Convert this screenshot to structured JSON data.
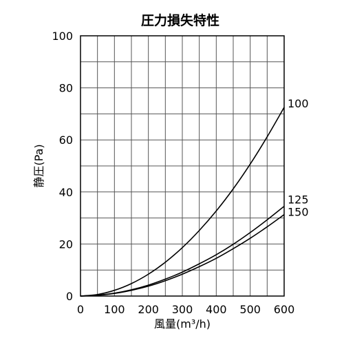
{
  "chart_data": {
    "type": "line",
    "title": "圧力損失特性",
    "xlabel": "風量(m³/h)",
    "ylabel": "静圧(Pa)",
    "xlim": [
      0,
      600
    ],
    "ylim": [
      0,
      100
    ],
    "x_major_ticks": [
      0,
      100,
      200,
      300,
      400,
      500,
      600
    ],
    "y_major_ticks": [
      0,
      20,
      40,
      60,
      80,
      100
    ],
    "x_tick_labels": [
      "0",
      "100",
      "200",
      "300",
      "400",
      "500",
      "600"
    ],
    "y_tick_labels": [
      "0",
      "20",
      "40",
      "60",
      "80",
      "100"
    ],
    "grid": true,
    "series": [
      {
        "name": "100",
        "x": [
          0,
          50,
          100,
          150,
          200,
          250,
          300,
          350,
          400,
          450,
          500,
          550,
          600
        ],
        "y": [
          0,
          0.6,
          2.2,
          4.8,
          8.4,
          13.0,
          18.6,
          25.2,
          32.7,
          41.2,
          50.7,
          61.2,
          72.5
        ]
      },
      {
        "name": "125",
        "x": [
          0,
          50,
          100,
          150,
          200,
          250,
          300,
          350,
          400,
          450,
          500,
          550,
          600
        ],
        "y": [
          0,
          0.3,
          1.1,
          2.4,
          4.2,
          6.5,
          9.2,
          12.4,
          15.9,
          19.9,
          24.4,
          29.3,
          34.5
        ]
      },
      {
        "name": "150",
        "x": [
          0,
          50,
          100,
          150,
          200,
          250,
          300,
          350,
          400,
          450,
          500,
          550,
          600
        ],
        "y": [
          0,
          0.3,
          1.0,
          2.2,
          3.8,
          5.9,
          8.4,
          11.3,
          14.5,
          18.2,
          22.2,
          26.6,
          31.3
        ]
      }
    ]
  }
}
